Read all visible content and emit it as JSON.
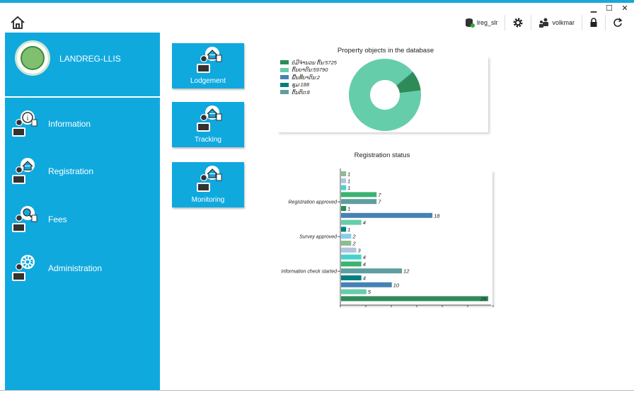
{
  "window": {
    "minimize": "▁",
    "maximize": "☐",
    "close": "✕"
  },
  "toolbar": {
    "home_icon": "home-icon",
    "db_label": "lreg_slr",
    "user_label": "volkmar"
  },
  "sidebar": {
    "app_name": "LANDREG-LLIS",
    "items": [
      {
        "label": "Information",
        "icon": "info-person-icon"
      },
      {
        "label": "Registration",
        "icon": "house-person-icon"
      },
      {
        "label": "Fees",
        "icon": "magnifier-person-icon"
      },
      {
        "label": "Administration",
        "icon": "gear-person-icon"
      }
    ]
  },
  "tiles": [
    {
      "label": "Lodgement",
      "icon": "house-person-icon"
    },
    {
      "label": "Tracking",
      "icon": "house-person-icon"
    },
    {
      "label": "Monitoring",
      "icon": "house-person-icon"
    }
  ],
  "colors": {
    "accent": "#0fa9de",
    "green_dark": "#2e8b57",
    "green_light": "#66cdaa",
    "steel": "#4682b4",
    "teal": "#008080",
    "cadet": "#5f9ea0"
  },
  "chart_data": [
    {
      "type": "pie",
      "title": "Property objects in the database",
      "legend": "left",
      "slices": [
        {
          "label": "ບໍ່ມີຈຳນວນ ຕົ້ນ:5725",
          "value": 5725,
          "color": "#2e8b57"
        },
        {
          "label": "ຕົ້ນບາດິນ:59790",
          "value": 59790,
          "color": "#66cdaa"
        },
        {
          "label": "ພື້ນທີ່ບາດິນ:2",
          "value": 2,
          "color": "#4682b4"
        },
        {
          "label": "ຊຸມ:188",
          "value": 188,
          "color": "#008080"
        },
        {
          "label": "ຕົ້ນຕິດ:8",
          "value": 8,
          "color": "#5f9ea0"
        }
      ]
    },
    {
      "type": "bar",
      "orientation": "horizontal",
      "title": "Registration status",
      "xlim": [
        0,
        29
      ],
      "bars": [
        {
          "value": 1,
          "color": "#8fbc8f",
          "label": ""
        },
        {
          "value": 1,
          "color": "#b0c4de",
          "label": ""
        },
        {
          "value": 1,
          "color": "#48d1cc",
          "label": ""
        },
        {
          "value": 7,
          "color": "#3cb371",
          "label": ""
        },
        {
          "value": 7,
          "color": "#5f9ea0",
          "label": "Registration approved"
        },
        {
          "value": 1,
          "color": "#2e8b57",
          "label": ""
        },
        {
          "value": 18,
          "color": "#4682b4",
          "label": ""
        },
        {
          "value": 4,
          "color": "#66cdaa",
          "label": ""
        },
        {
          "value": 1,
          "color": "#008080",
          "label": ""
        },
        {
          "value": 2,
          "color": "#87ceeb",
          "label": "Survey approved"
        },
        {
          "value": 2,
          "color": "#8fbc8f",
          "label": ""
        },
        {
          "value": 3,
          "color": "#b0c4de",
          "label": ""
        },
        {
          "value": 4,
          "color": "#48d1cc",
          "label": ""
        },
        {
          "value": 4,
          "color": "#3cb371",
          "label": ""
        },
        {
          "value": 12,
          "color": "#5f9ea0",
          "label": "Information check started"
        },
        {
          "value": 4,
          "color": "#008080",
          "label": ""
        },
        {
          "value": 10,
          "color": "#4682b4",
          "label": ""
        },
        {
          "value": 5,
          "color": "#66cdaa",
          "label": ""
        },
        {
          "value": 29,
          "color": "#2e8b57",
          "label": ""
        }
      ]
    }
  ]
}
